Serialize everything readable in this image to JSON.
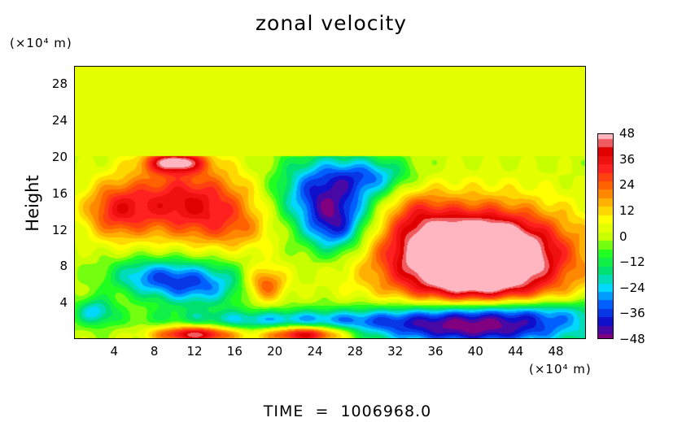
{
  "title": "zonal velocity",
  "y_unit_label": "(×10⁴ m)",
  "x_unit_label": "(×10⁴ m)",
  "ylabel": "Height",
  "footer": "TIME  =  1006968.0",
  "chart_data": {
    "type": "heatmap",
    "title": "zonal velocity",
    "xlabel": "",
    "ylabel": "Height",
    "x_unit": "(×10⁴ m)",
    "y_unit": "(×10⁴ m)",
    "xlim": [
      0,
      51
    ],
    "ylim": [
      0,
      30
    ],
    "x_ticks": [
      4,
      8,
      12,
      16,
      20,
      24,
      28,
      32,
      36,
      40,
      44,
      48
    ],
    "y_ticks": [
      4,
      8,
      12,
      16,
      20,
      24,
      28
    ],
    "colorbar": {
      "ticks": [
        48,
        36,
        24,
        12,
        0,
        -12,
        -24,
        -36,
        -48
      ],
      "range": [
        -48,
        48
      ],
      "colors": [
        "#800080",
        "#1010cc",
        "#0060ff",
        "#00d8ff",
        "#00e070",
        "#20ff20",
        "#c8ff00",
        "#ffff00",
        "#ffb000",
        "#ff6000",
        "#ff2020",
        "#e00000",
        "#ffb6c1"
      ]
    },
    "background_value": 0,
    "features": [
      {
        "x": 11,
        "y": 15,
        "rx": 7,
        "ry": 4,
        "value": 38
      },
      {
        "x": 10,
        "y": 19.5,
        "rx": 3,
        "ry": 1.2,
        "value": 44
      },
      {
        "x": 4,
        "y": 14,
        "rx": 3,
        "ry": 3,
        "value": 22
      },
      {
        "x": 16,
        "y": 12,
        "rx": 4,
        "ry": 2.5,
        "value": 12
      },
      {
        "x": 25,
        "y": 16,
        "rx": 5,
        "ry": 4,
        "value": -40
      },
      {
        "x": 26,
        "y": 12,
        "rx": 3,
        "ry": 3,
        "value": -30
      },
      {
        "x": 30,
        "y": 18,
        "rx": 4,
        "ry": 2,
        "value": -20
      },
      {
        "x": 12,
        "y": 6,
        "rx": 5,
        "ry": 2.5,
        "value": -32
      },
      {
        "x": 7,
        "y": 7,
        "rx": 4,
        "ry": 2,
        "value": -20
      },
      {
        "x": 19,
        "y": 6,
        "rx": 2,
        "ry": 2,
        "value": 28
      },
      {
        "x": 40,
        "y": 9,
        "rx": 10,
        "ry": 6,
        "value": 44
      },
      {
        "x": 40,
        "y": 9,
        "rx": 7,
        "ry": 4,
        "value": 50
      },
      {
        "x": 40,
        "y": 1,
        "rx": 11,
        "ry": 2,
        "value": -50
      },
      {
        "x": 42,
        "y": 3,
        "rx": 12,
        "ry": 1.5,
        "value": -30
      },
      {
        "x": 21,
        "y": 2,
        "rx": 12,
        "ry": 1.2,
        "value": -25
      },
      {
        "x": 12,
        "y": 0.5,
        "rx": 4,
        "ry": 1,
        "value": 46
      },
      {
        "x": 23,
        "y": 0.5,
        "rx": 4,
        "ry": 1,
        "value": 46
      },
      {
        "x": 2,
        "y": 3,
        "rx": 2,
        "ry": 1.5,
        "value": -24
      },
      {
        "x": 34,
        "y": 14,
        "rx": 3,
        "ry": 3,
        "value": 14
      }
    ]
  }
}
